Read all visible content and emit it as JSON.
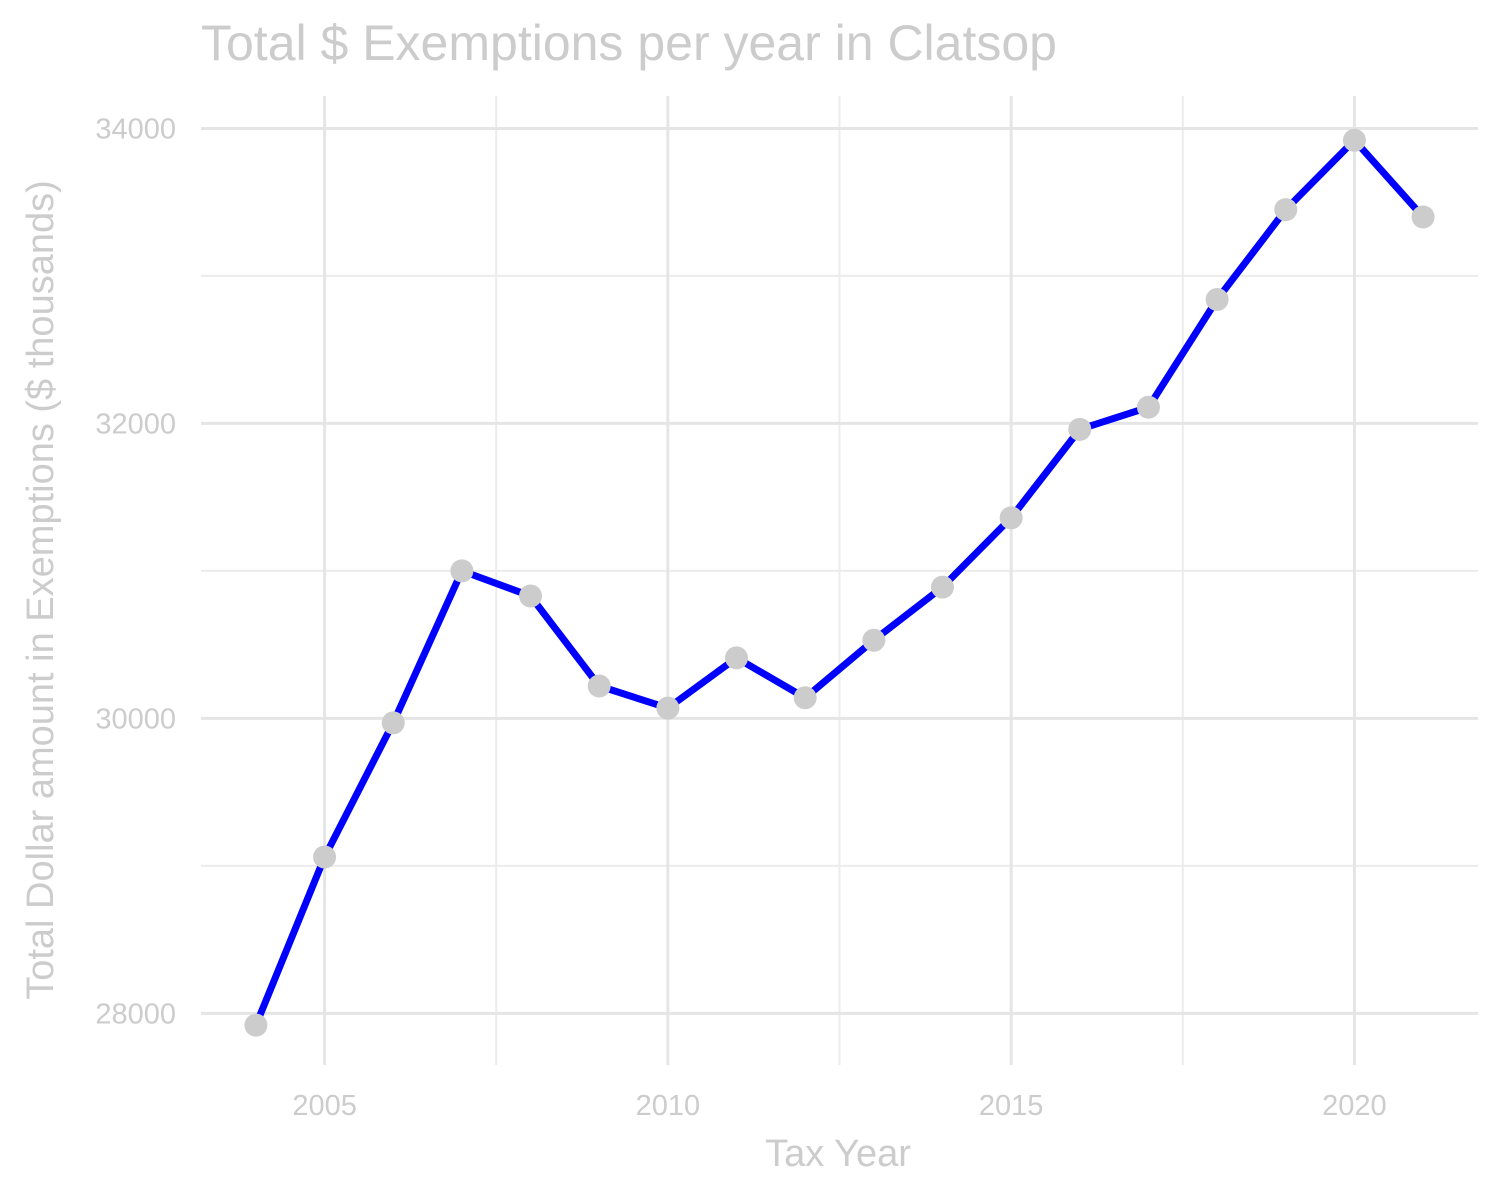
{
  "chart_data": {
    "type": "line",
    "title": "Total $ Exemptions per year in Clatsop",
    "xlabel": "Tax Year",
    "ylabel": "Total Dollar amount in Exemptions ($ thousands)",
    "x": [
      2004,
      2005,
      2006,
      2007,
      2008,
      2009,
      2010,
      2011,
      2012,
      2013,
      2014,
      2015,
      2016,
      2017,
      2018,
      2019,
      2020,
      2021
    ],
    "series": [
      {
        "values": [
          27920,
          29060,
          29970,
          31000,
          30830,
          30220,
          30070,
          30410,
          30140,
          30530,
          30890,
          31360,
          31960,
          32110,
          32840,
          33450,
          33920,
          33400
        ]
      }
    ],
    "x_ticks": [
      "2005",
      "2010",
      "2015",
      "2020"
    ],
    "y_ticks": [
      "28000",
      "30000",
      "32000",
      "34000"
    ],
    "xlim": [
      2003.2,
      2021.8
    ],
    "ylim": [
      27650,
      34220
    ],
    "grid": true,
    "legend": "none",
    "colors": {
      "line": "#0000ff",
      "point": "#cccccc",
      "grid": "#e5e5e5",
      "text": "#cccccc"
    }
  }
}
